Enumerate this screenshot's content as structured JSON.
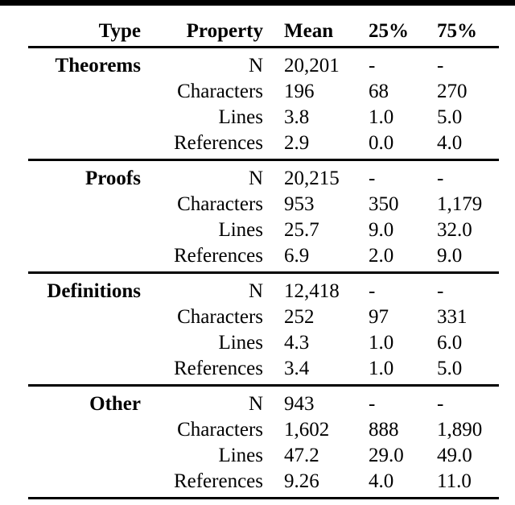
{
  "colors": {
    "background": "#ffffff",
    "text": "#000000",
    "rule": "#000000"
  },
  "table": {
    "headers": [
      "Type",
      "Property",
      "Mean",
      "25%",
      "75%"
    ],
    "groups": [
      {
        "type": "Theorems",
        "rows": [
          {
            "property": "N",
            "mean": "20,201",
            "p25": "-",
            "p75": "-"
          },
          {
            "property": "Characters",
            "mean": "196",
            "p25": "68",
            "p75": "270"
          },
          {
            "property": "Lines",
            "mean": "3.8",
            "p25": "1.0",
            "p75": "5.0"
          },
          {
            "property": "References",
            "mean": "2.9",
            "p25": "0.0",
            "p75": "4.0"
          }
        ]
      },
      {
        "type": "Proofs",
        "rows": [
          {
            "property": "N",
            "mean": "20,215",
            "p25": "-",
            "p75": "-"
          },
          {
            "property": "Characters",
            "mean": "953",
            "p25": "350",
            "p75": "1,179"
          },
          {
            "property": "Lines",
            "mean": "25.7",
            "p25": "9.0",
            "p75": "32.0"
          },
          {
            "property": "References",
            "mean": "6.9",
            "p25": "2.0",
            "p75": "9.0"
          }
        ]
      },
      {
        "type": "Definitions",
        "rows": [
          {
            "property": "N",
            "mean": "12,418",
            "p25": "-",
            "p75": "-"
          },
          {
            "property": "Characters",
            "mean": "252",
            "p25": "97",
            "p75": "331"
          },
          {
            "property": "Lines",
            "mean": "4.3",
            "p25": "1.0",
            "p75": "6.0"
          },
          {
            "property": "References",
            "mean": "3.4",
            "p25": "1.0",
            "p75": "5.0"
          }
        ]
      },
      {
        "type": "Other",
        "rows": [
          {
            "property": "N",
            "mean": "943",
            "p25": "-",
            "p75": "-"
          },
          {
            "property": "Characters",
            "mean": "1,602",
            "p25": "888",
            "p75": "1,890"
          },
          {
            "property": "Lines",
            "mean": "47.2",
            "p25": "29.0",
            "p75": "49.0"
          },
          {
            "property": "References",
            "mean": "9.26",
            "p25": "4.0",
            "p75": "11.0"
          }
        ]
      }
    ]
  }
}
